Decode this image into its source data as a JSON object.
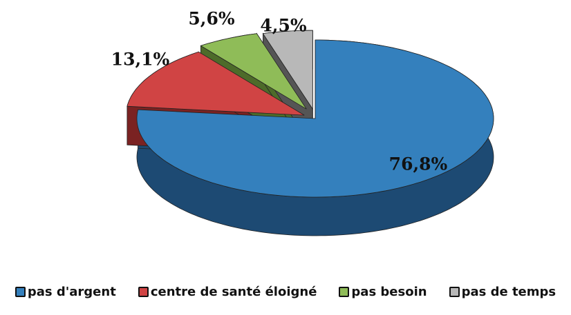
{
  "chart_data": {
    "type": "pie",
    "style": "3d-exploded",
    "categories": [
      "pas d'argent",
      "centre de santé éloigné",
      "pas besoin",
      "pas de temps"
    ],
    "values": [
      76.8,
      13.1,
      5.6,
      4.5
    ],
    "data_labels": [
      "76,8%",
      "13,1%",
      "5,6%",
      "4,5%"
    ],
    "colors": [
      "#3480bd",
      "#d04444",
      "#8fbc58",
      "#b8b8b8"
    ],
    "side_colors": [
      "#1d4a73",
      "#7a2222",
      "#4d6b2a",
      "#555555"
    ],
    "legend_position": "bottom",
    "title": ""
  }
}
